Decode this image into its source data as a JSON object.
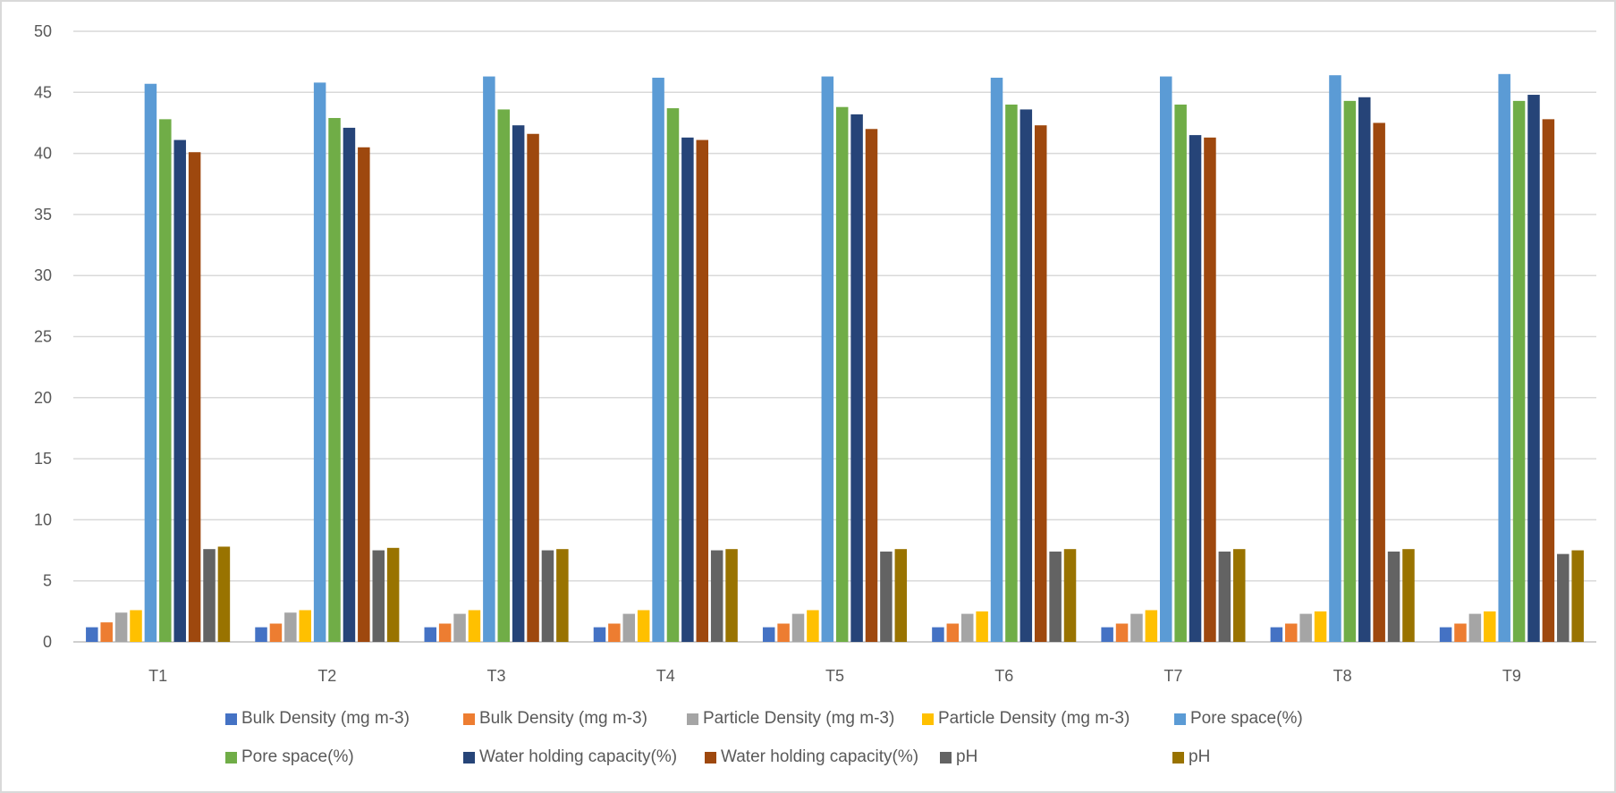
{
  "chart_data": {
    "type": "bar",
    "title": "",
    "xlabel": "",
    "ylabel": "",
    "ylim": [
      0,
      50
    ],
    "yticks": [
      0,
      5,
      10,
      15,
      20,
      25,
      30,
      35,
      40,
      45,
      50
    ],
    "grid": true,
    "legend_position": "bottom",
    "categories": [
      "T1",
      "T2",
      "T3",
      "T4",
      "T5",
      "T6",
      "T7",
      "T8",
      "T9"
    ],
    "series": [
      {
        "name": "Bulk Density (mg m-3)",
        "color": "#4472c4",
        "values": [
          1.2,
          1.2,
          1.2,
          1.2,
          1.2,
          1.2,
          1.2,
          1.2,
          1.2
        ]
      },
      {
        "name": "Bulk Density (mg m-3)",
        "color": "#ed7d31",
        "values": [
          1.6,
          1.5,
          1.5,
          1.5,
          1.5,
          1.5,
          1.5,
          1.5,
          1.5
        ]
      },
      {
        "name": "Particle Density (mg m-3)",
        "color": "#a5a5a5",
        "values": [
          2.4,
          2.4,
          2.3,
          2.3,
          2.3,
          2.3,
          2.3,
          2.3,
          2.3
        ]
      },
      {
        "name": "Particle Density (mg m-3)",
        "color": "#ffc000",
        "values": [
          2.6,
          2.6,
          2.6,
          2.6,
          2.6,
          2.5,
          2.6,
          2.5,
          2.5
        ]
      },
      {
        "name": "Pore space(%)",
        "color": "#5b9bd5",
        "values": [
          45.7,
          45.8,
          46.3,
          46.2,
          46.3,
          46.2,
          46.3,
          46.4,
          46.5
        ]
      },
      {
        "name": "Pore space(%)",
        "color": "#70ad47",
        "values": [
          42.8,
          42.9,
          43.6,
          43.7,
          43.8,
          44.0,
          44.0,
          44.3,
          44.3
        ]
      },
      {
        "name": "Water holding capacity(%)",
        "color": "#264478",
        "values": [
          41.1,
          42.1,
          42.3,
          41.3,
          43.2,
          43.6,
          41.5,
          44.6,
          44.8
        ]
      },
      {
        "name": "Water holding capacity(%)",
        "color": "#9e480e",
        "values": [
          40.1,
          40.5,
          41.6,
          41.1,
          42.0,
          42.3,
          41.3,
          42.5,
          42.8
        ]
      },
      {
        "name": "pH",
        "color": "#636363",
        "values": [
          7.6,
          7.5,
          7.5,
          7.5,
          7.4,
          7.4,
          7.4,
          7.4,
          7.2
        ]
      },
      {
        "name": "pH",
        "color": "#997300",
        "values": [
          7.8,
          7.7,
          7.6,
          7.6,
          7.6,
          7.6,
          7.6,
          7.6,
          7.5
        ]
      }
    ]
  }
}
